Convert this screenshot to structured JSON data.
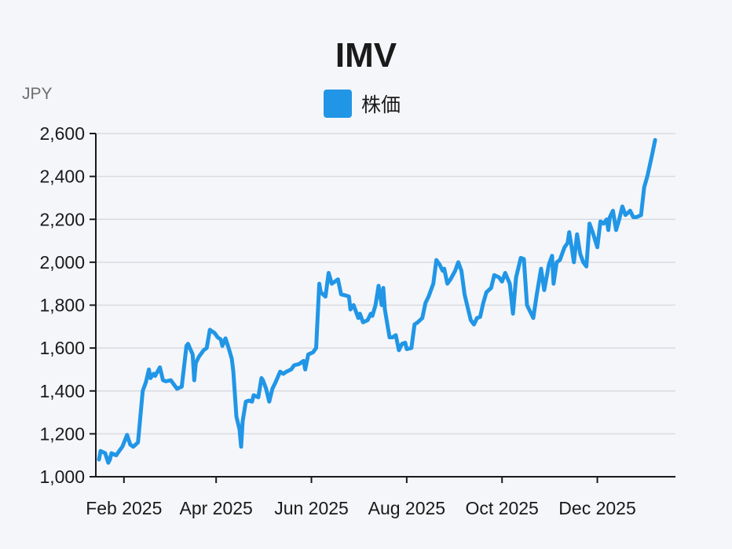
{
  "title": "IMV",
  "unit_label": "JPY",
  "legend": {
    "label": "株価",
    "color": "#2196e6"
  },
  "chart_data": {
    "type": "line",
    "title": "IMV",
    "ylabel": "JPY",
    "ylim": [
      1000,
      2600
    ],
    "yticks": [
      1000,
      1200,
      1400,
      1600,
      1800,
      2000,
      2200,
      2400,
      2600
    ],
    "ytick_labels": [
      "1,000",
      "1,200",
      "1,400",
      "1,600",
      "1,800",
      "2,000",
      "2,200",
      "2,400",
      "2,600"
    ],
    "xlim": [
      "2025-01-14",
      "2026-01-20"
    ],
    "xticks": [
      "2025-02-01",
      "2025-04-01",
      "2025-06-01",
      "2025-08-01",
      "2025-10-01",
      "2025-12-01"
    ],
    "xtick_labels": [
      "Feb 2025",
      "Apr 2025",
      "Jun 2025",
      "Aug 2025",
      "Oct 2025",
      "Dec 2025"
    ],
    "grid": true,
    "series": [
      {
        "name": "株価",
        "color": "#2196e6",
        "points": [
          [
            "2025-01-16",
            1080
          ],
          [
            "2025-01-17",
            1120
          ],
          [
            "2025-01-20",
            1110
          ],
          [
            "2025-01-22",
            1065
          ],
          [
            "2025-01-23",
            1080
          ],
          [
            "2025-01-24",
            1110
          ],
          [
            "2025-01-27",
            1100
          ],
          [
            "2025-01-29",
            1120
          ],
          [
            "2025-01-31",
            1140
          ],
          [
            "2025-02-03",
            1195
          ],
          [
            "2025-02-05",
            1150
          ],
          [
            "2025-02-07",
            1140
          ],
          [
            "2025-02-10",
            1160
          ],
          [
            "2025-02-13",
            1400
          ],
          [
            "2025-02-15",
            1440
          ],
          [
            "2025-02-17",
            1500
          ],
          [
            "2025-02-18",
            1460
          ],
          [
            "2025-02-20",
            1480
          ],
          [
            "2025-02-21",
            1470
          ],
          [
            "2025-02-24",
            1510
          ],
          [
            "2025-02-26",
            1450
          ],
          [
            "2025-02-28",
            1445
          ],
          [
            "2025-03-03",
            1450
          ],
          [
            "2025-03-05",
            1430
          ],
          [
            "2025-03-07",
            1410
          ],
          [
            "2025-03-10",
            1420
          ],
          [
            "2025-03-13",
            1610
          ],
          [
            "2025-03-14",
            1620
          ],
          [
            "2025-03-17",
            1570
          ],
          [
            "2025-03-18",
            1450
          ],
          [
            "2025-03-19",
            1530
          ],
          [
            "2025-03-21",
            1560
          ],
          [
            "2025-03-24",
            1590
          ],
          [
            "2025-03-26",
            1600
          ],
          [
            "2025-03-28",
            1685
          ],
          [
            "2025-03-31",
            1670
          ],
          [
            "2025-04-02",
            1650
          ],
          [
            "2025-04-04",
            1640
          ],
          [
            "2025-04-05",
            1610
          ],
          [
            "2025-04-07",
            1645
          ],
          [
            "2025-04-09",
            1600
          ],
          [
            "2025-04-11",
            1550
          ],
          [
            "2025-04-12",
            1490
          ],
          [
            "2025-04-14",
            1280
          ],
          [
            "2025-04-16",
            1220
          ],
          [
            "2025-04-17",
            1140
          ],
          [
            "2025-04-18",
            1260
          ],
          [
            "2025-04-20",
            1350
          ],
          [
            "2025-04-22",
            1355
          ],
          [
            "2025-04-24",
            1350
          ],
          [
            "2025-04-25",
            1380
          ],
          [
            "2025-04-28",
            1370
          ],
          [
            "2025-04-30",
            1460
          ],
          [
            "2025-05-01",
            1450
          ],
          [
            "2025-05-03",
            1410
          ],
          [
            "2025-05-05",
            1350
          ],
          [
            "2025-05-07",
            1410
          ],
          [
            "2025-05-09",
            1440
          ],
          [
            "2025-05-12",
            1490
          ],
          [
            "2025-05-14",
            1480
          ],
          [
            "2025-05-16",
            1490
          ],
          [
            "2025-05-19",
            1500
          ],
          [
            "2025-05-21",
            1520
          ],
          [
            "2025-05-24",
            1525
          ],
          [
            "2025-05-27",
            1540
          ],
          [
            "2025-05-28",
            1500
          ],
          [
            "2025-05-30",
            1570
          ],
          [
            "2025-06-02",
            1580
          ],
          [
            "2025-06-04",
            1600
          ],
          [
            "2025-06-06",
            1900
          ],
          [
            "2025-06-07",
            1860
          ],
          [
            "2025-06-10",
            1840
          ],
          [
            "2025-06-12",
            1950
          ],
          [
            "2025-06-14",
            1900
          ],
          [
            "2025-06-16",
            1910
          ],
          [
            "2025-06-18",
            1920
          ],
          [
            "2025-06-20",
            1850
          ],
          [
            "2025-06-23",
            1845
          ],
          [
            "2025-06-25",
            1840
          ],
          [
            "2025-06-26",
            1780
          ],
          [
            "2025-06-28",
            1800
          ],
          [
            "2025-07-01",
            1740
          ],
          [
            "2025-07-02",
            1760
          ],
          [
            "2025-07-04",
            1720
          ],
          [
            "2025-07-07",
            1730
          ],
          [
            "2025-07-09",
            1760
          ],
          [
            "2025-07-10",
            1750
          ],
          [
            "2025-07-12",
            1800
          ],
          [
            "2025-07-14",
            1890
          ],
          [
            "2025-07-16",
            1800
          ],
          [
            "2025-07-17",
            1880
          ],
          [
            "2025-07-18",
            1780
          ],
          [
            "2025-07-21",
            1650
          ],
          [
            "2025-07-23",
            1650
          ],
          [
            "2025-07-25",
            1660
          ],
          [
            "2025-07-27",
            1590
          ],
          [
            "2025-07-29",
            1620
          ],
          [
            "2025-07-31",
            1625
          ],
          [
            "2025-08-01",
            1595
          ],
          [
            "2025-08-04",
            1600
          ],
          [
            "2025-08-06",
            1710
          ],
          [
            "2025-08-08",
            1720
          ],
          [
            "2025-08-11",
            1740
          ],
          [
            "2025-08-13",
            1810
          ],
          [
            "2025-08-15",
            1840
          ],
          [
            "2025-08-18",
            1900
          ],
          [
            "2025-08-20",
            2010
          ],
          [
            "2025-08-22",
            1990
          ],
          [
            "2025-08-24",
            1960
          ],
          [
            "2025-08-25",
            1970
          ],
          [
            "2025-08-27",
            1900
          ],
          [
            "2025-08-29",
            1920
          ],
          [
            "2025-09-01",
            1960
          ],
          [
            "2025-09-03",
            2000
          ],
          [
            "2025-09-05",
            1960
          ],
          [
            "2025-09-07",
            1850
          ],
          [
            "2025-09-09",
            1790
          ],
          [
            "2025-09-11",
            1730
          ],
          [
            "2025-09-13",
            1710
          ],
          [
            "2025-09-15",
            1740
          ],
          [
            "2025-09-17",
            1745
          ],
          [
            "2025-09-19",
            1810
          ],
          [
            "2025-09-21",
            1860
          ],
          [
            "2025-09-24",
            1880
          ],
          [
            "2025-09-26",
            1940
          ],
          [
            "2025-09-29",
            1930
          ],
          [
            "2025-10-01",
            1910
          ],
          [
            "2025-10-03",
            1950
          ],
          [
            "2025-10-06",
            1900
          ],
          [
            "2025-10-08",
            1760
          ],
          [
            "2025-10-10",
            1930
          ],
          [
            "2025-10-13",
            2020
          ],
          [
            "2025-10-15",
            2015
          ],
          [
            "2025-10-17",
            1800
          ],
          [
            "2025-10-19",
            1770
          ],
          [
            "2025-10-21",
            1740
          ],
          [
            "2025-10-23",
            1840
          ],
          [
            "2025-10-26",
            1970
          ],
          [
            "2025-10-28",
            1870
          ],
          [
            "2025-10-31",
            1990
          ],
          [
            "2025-11-02",
            2030
          ],
          [
            "2025-11-03",
            1900
          ],
          [
            "2025-11-05",
            2000
          ],
          [
            "2025-11-07",
            2010
          ],
          [
            "2025-11-10",
            2070
          ],
          [
            "2025-11-12",
            2090
          ],
          [
            "2025-11-13",
            2140
          ],
          [
            "2025-11-15",
            2050
          ],
          [
            "2025-11-16",
            2000
          ],
          [
            "2025-11-18",
            2130
          ],
          [
            "2025-11-20",
            2040
          ],
          [
            "2025-11-22",
            2000
          ],
          [
            "2025-11-24",
            1980
          ],
          [
            "2025-11-26",
            2180
          ],
          [
            "2025-11-28",
            2140
          ],
          [
            "2025-12-01",
            2070
          ],
          [
            "2025-12-03",
            2190
          ],
          [
            "2025-12-05",
            2180
          ],
          [
            "2025-12-07",
            2200
          ],
          [
            "2025-12-08",
            2150
          ],
          [
            "2025-12-09",
            2210
          ],
          [
            "2025-12-11",
            2240
          ],
          [
            "2025-12-13",
            2150
          ],
          [
            "2025-12-15",
            2200
          ],
          [
            "2025-12-17",
            2260
          ],
          [
            "2025-12-19",
            2220
          ],
          [
            "2025-12-22",
            2240
          ],
          [
            "2025-12-24",
            2210
          ],
          [
            "2025-12-26",
            2210
          ],
          [
            "2025-12-29",
            2220
          ],
          [
            "2025-12-31",
            2350
          ],
          [
            "2026-01-02",
            2400
          ],
          [
            "2026-01-05",
            2500
          ],
          [
            "2026-01-07",
            2570
          ]
        ]
      }
    ]
  }
}
